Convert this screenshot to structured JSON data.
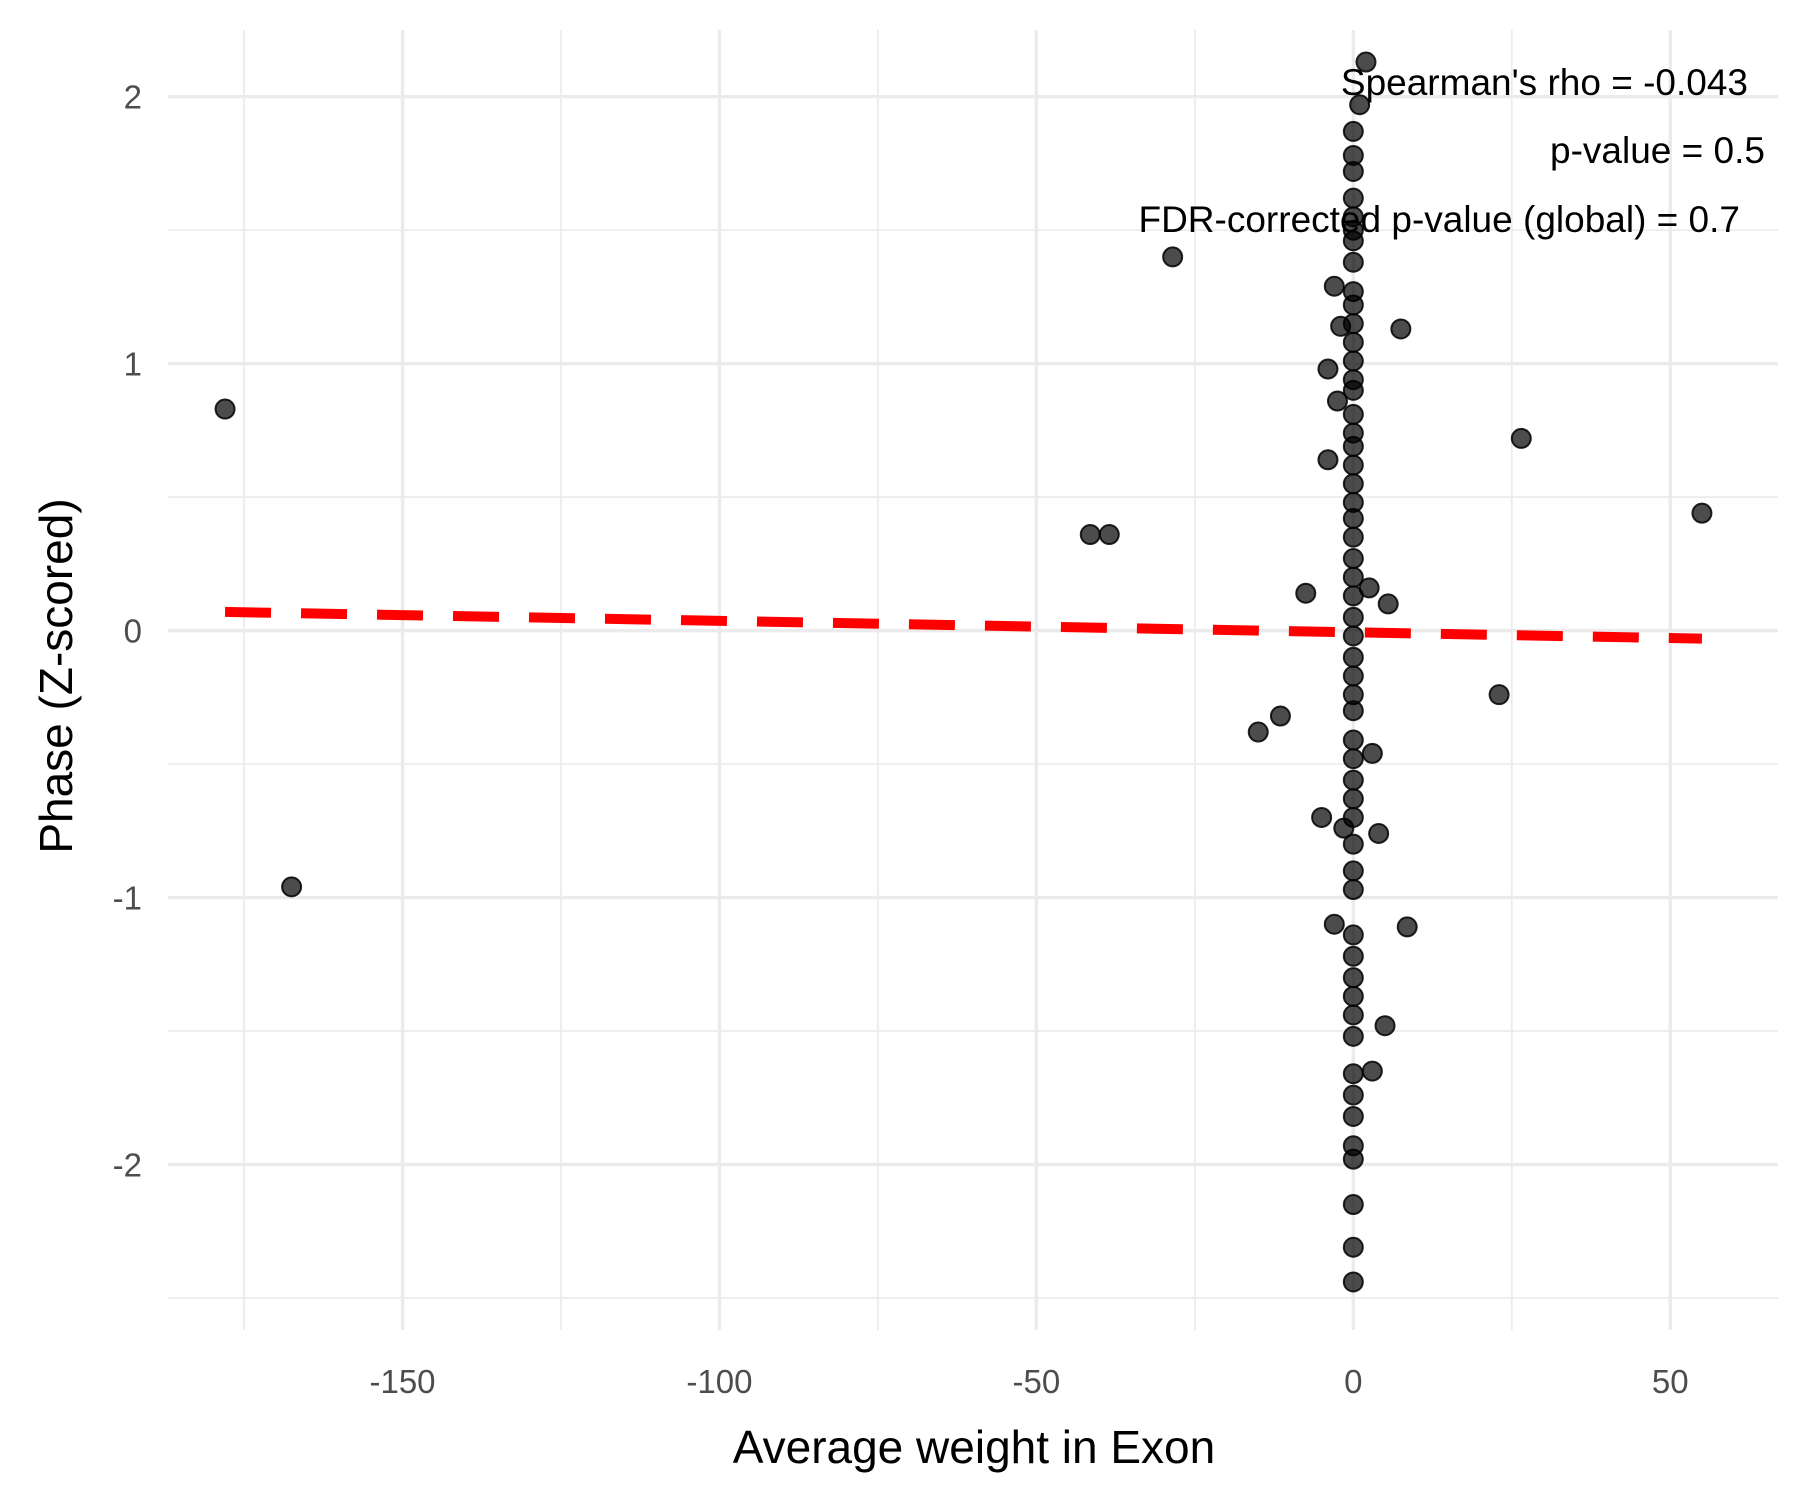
{
  "chart_data": {
    "type": "scatter",
    "title": "",
    "xlabel": "Average weight in Exon",
    "ylabel": "Phase (Z-scored)",
    "xlim": [
      -187,
      67
    ],
    "ylim": [
      -2.62,
      2.25
    ],
    "x_ticks": [
      -150,
      -100,
      -50,
      0,
      50
    ],
    "x_tick_labels": [
      "-150",
      "-100",
      "-50",
      "0",
      "50"
    ],
    "y_ticks": [
      -2,
      -1,
      0,
      1,
      2
    ],
    "y_tick_labels": [
      "-2",
      "-1",
      "0",
      "1",
      "2"
    ],
    "grid": true,
    "legend": "none",
    "point_color": "#000000",
    "point_opacity": 0.7,
    "annotations": [
      "Spearman's rho = -0.043",
      "p-value = 0.5",
      "FDR-corrected p-value (global) = 0.7"
    ],
    "trend_line": {
      "style": "dashed",
      "color": "#ff0000",
      "x": [
        -178,
        55
      ],
      "y": [
        0.07,
        -0.03
      ]
    },
    "points": [
      {
        "x": -178,
        "y": 0.83
      },
      {
        "x": -167.5,
        "y": -0.96
      },
      {
        "x": -41.5,
        "y": 0.36
      },
      {
        "x": -38.5,
        "y": 0.36
      },
      {
        "x": -28.5,
        "y": 1.4
      },
      {
        "x": -15,
        "y": -0.38
      },
      {
        "x": -11.5,
        "y": -0.32
      },
      {
        "x": -7.5,
        "y": 0.14
      },
      {
        "x": -5,
        "y": -0.7
      },
      {
        "x": -4,
        "y": 0.64
      },
      {
        "x": -4,
        "y": 0.98
      },
      {
        "x": -3,
        "y": -1.1
      },
      {
        "x": -3,
        "y": 1.29
      },
      {
        "x": -2.5,
        "y": 0.86
      },
      {
        "x": -2,
        "y": 1.14
      },
      {
        "x": -1.5,
        "y": -0.74
      },
      {
        "x": 1,
        "y": 1.97
      },
      {
        "x": 2,
        "y": 2.13
      },
      {
        "x": 2.5,
        "y": 0.16
      },
      {
        "x": 3,
        "y": -0.46
      },
      {
        "x": 3,
        "y": -1.65
      },
      {
        "x": 4,
        "y": -0.76
      },
      {
        "x": 5,
        "y": -1.48
      },
      {
        "x": 5.5,
        "y": 0.1
      },
      {
        "x": 7.5,
        "y": 1.13
      },
      {
        "x": 8.5,
        "y": -1.11
      },
      {
        "x": 23,
        "y": -0.24
      },
      {
        "x": 26.5,
        "y": 0.72
      },
      {
        "x": 55,
        "y": 0.44
      },
      {
        "x": 0,
        "y": 1.87
      },
      {
        "x": 0,
        "y": 1.78
      },
      {
        "x": 0,
        "y": 1.72
      },
      {
        "x": 0,
        "y": 1.62
      },
      {
        "x": 0,
        "y": 1.55
      },
      {
        "x": 0,
        "y": 1.5
      },
      {
        "x": 0,
        "y": 1.46
      },
      {
        "x": 0,
        "y": 1.38
      },
      {
        "x": 0,
        "y": 1.27
      },
      {
        "x": 0,
        "y": 1.22
      },
      {
        "x": 0,
        "y": 1.15
      },
      {
        "x": 0,
        "y": 1.08
      },
      {
        "x": 0,
        "y": 1.01
      },
      {
        "x": 0,
        "y": 0.94
      },
      {
        "x": 0,
        "y": 0.9
      },
      {
        "x": 0,
        "y": 0.81
      },
      {
        "x": 0,
        "y": 0.74
      },
      {
        "x": 0,
        "y": 0.69
      },
      {
        "x": 0,
        "y": 0.62
      },
      {
        "x": 0,
        "y": 0.55
      },
      {
        "x": 0,
        "y": 0.48
      },
      {
        "x": 0,
        "y": 0.42
      },
      {
        "x": 0,
        "y": 0.35
      },
      {
        "x": 0,
        "y": 0.27
      },
      {
        "x": 0,
        "y": 0.2
      },
      {
        "x": 0,
        "y": 0.13
      },
      {
        "x": 0,
        "y": 0.05
      },
      {
        "x": 0,
        "y": -0.02
      },
      {
        "x": 0,
        "y": -0.1
      },
      {
        "x": 0,
        "y": -0.17
      },
      {
        "x": 0,
        "y": -0.24
      },
      {
        "x": 0,
        "y": -0.3
      },
      {
        "x": 0,
        "y": -0.41
      },
      {
        "x": 0,
        "y": -0.48
      },
      {
        "x": 0,
        "y": -0.56
      },
      {
        "x": 0,
        "y": -0.63
      },
      {
        "x": 0,
        "y": -0.7
      },
      {
        "x": 0,
        "y": -0.8
      },
      {
        "x": 0,
        "y": -0.9
      },
      {
        "x": 0,
        "y": -0.97
      },
      {
        "x": 0,
        "y": -1.14
      },
      {
        "x": 0,
        "y": -1.22
      },
      {
        "x": 0,
        "y": -1.3
      },
      {
        "x": 0,
        "y": -1.37
      },
      {
        "x": 0,
        "y": -1.44
      },
      {
        "x": 0,
        "y": -1.52
      },
      {
        "x": 0,
        "y": -1.66
      },
      {
        "x": 0,
        "y": -1.74
      },
      {
        "x": 0,
        "y": -1.82
      },
      {
        "x": 0,
        "y": -1.93
      },
      {
        "x": 0,
        "y": -1.98
      },
      {
        "x": 0,
        "y": -2.15
      },
      {
        "x": 0,
        "y": -2.31
      },
      {
        "x": 0,
        "y": -2.44
      }
    ]
  }
}
